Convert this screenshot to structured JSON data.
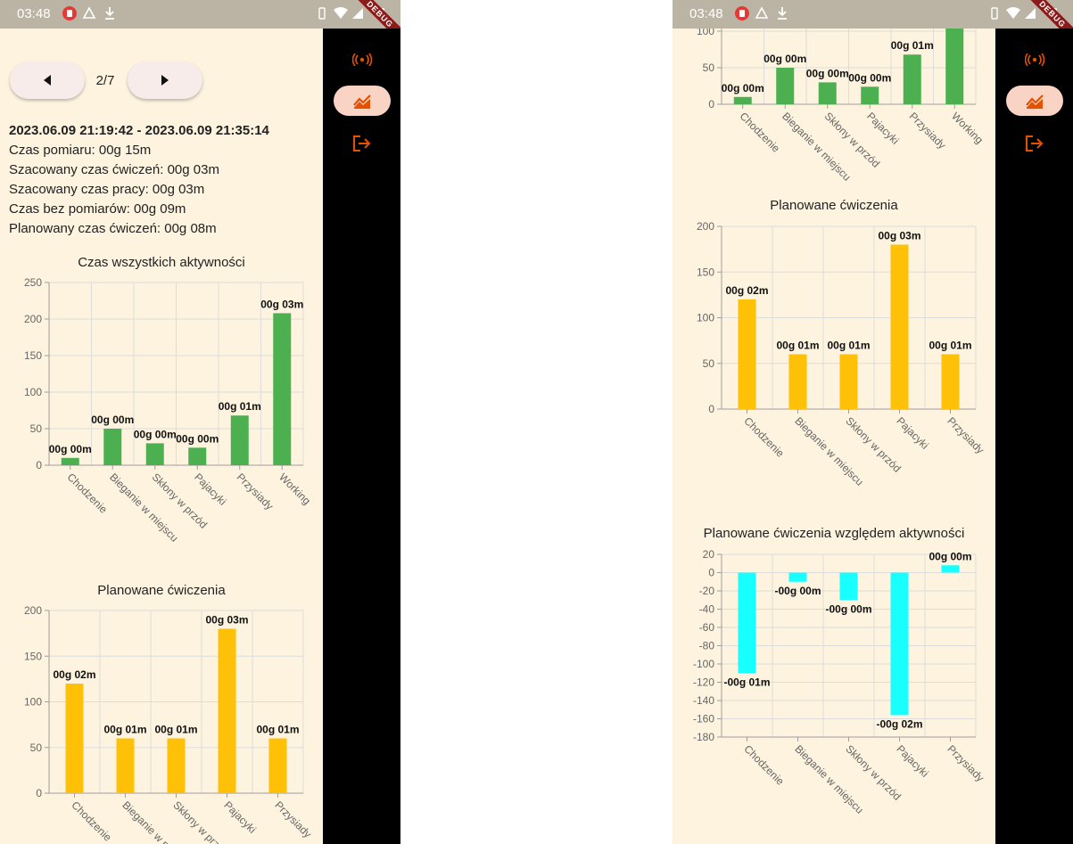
{
  "status_bar": {
    "time": "03:48"
  },
  "debug_banner": "DEBUG",
  "navigation": {
    "page_indicator": "2/7"
  },
  "summary": {
    "date_range": "2023.06.09 21:19:42 - 2023.06.09 21:35:14",
    "measurement_time": "Czas pomiaru: 00g 15m",
    "est_exercise_time": "Szacowany czas ćwiczeń: 00g 03m",
    "est_work_time": "Szacowany czas pracy: 00g 03m",
    "no_measurement_time": "Czas bez pomiarów: 00g 09m",
    "planned_exercise_time": "Planowany czas ćwiczeń: 00g 08m"
  },
  "colors": {
    "activities": "#4caf50",
    "planned": "#ffc107",
    "relative": "#18ffff",
    "accent": "#e65100"
  },
  "icons": [
    "sensors-icon",
    "chart-icon",
    "logout-icon",
    "previous-arrow-icon",
    "next-arrow-icon"
  ],
  "chart_data": [
    {
      "id": "activities",
      "type": "bar",
      "title": "Czas wszystkich aktywności",
      "categories": [
        "Chodzenie",
        "Bieganie w miejscu",
        "Skłony w przód",
        "Pajacyki",
        "Przysiady",
        "Working"
      ],
      "values": [
        10,
        50,
        30,
        24,
        68,
        208
      ],
      "labels": [
        "00g 00m",
        "00g 00m",
        "00g 00m",
        "00g 00m",
        "00g 01m",
        "00g 03m"
      ],
      "ylim": [
        0,
        250
      ],
      "yticks": [
        0,
        50,
        100,
        150,
        200,
        250
      ],
      "grid": true
    },
    {
      "id": "planned",
      "type": "bar",
      "title": "Planowane ćwiczenia",
      "categories": [
        "Chodzenie",
        "Bieganie w miejscu",
        "Skłony w przód",
        "Pajacyki",
        "Przysiady"
      ],
      "values": [
        120,
        60,
        60,
        180,
        60
      ],
      "labels": [
        "00g 02m",
        "00g 01m",
        "00g 01m",
        "00g 03m",
        "00g 01m"
      ],
      "ylim": [
        0,
        200
      ],
      "yticks": [
        0,
        50,
        100,
        150,
        200
      ],
      "grid": true
    },
    {
      "id": "relative",
      "type": "bar",
      "title": "Planowane ćwiczenia względem aktywności",
      "categories": [
        "Chodzenie",
        "Bieganie w miejscu",
        "Skłony w przód",
        "Pajacyki",
        "Przysiady"
      ],
      "values": [
        -110,
        -10,
        -30,
        -156,
        8
      ],
      "labels": [
        "-00g 01m",
        "-00g 00m",
        "-00g 00m",
        "-00g 02m",
        "00g 00m"
      ],
      "ylim": [
        -180,
        20
      ],
      "yticks": [
        -180,
        -160,
        -140,
        -120,
        -100,
        -80,
        -60,
        -40,
        -20,
        0,
        20
      ],
      "grid": true
    }
  ]
}
